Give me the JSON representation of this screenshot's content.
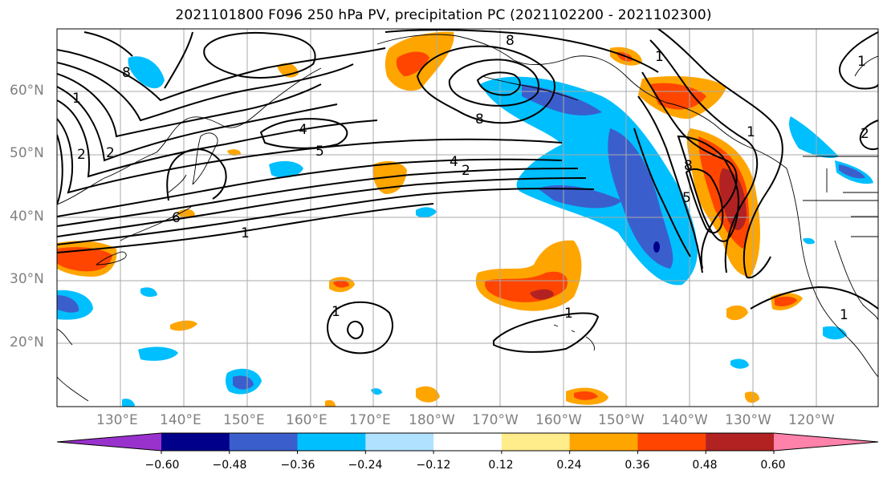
{
  "title": "2021101800 F096 250 hPa PV, precipitation PC (2021102200 - 2021102300)",
  "lat_labels": [
    "60°N",
    "50°N",
    "40°N",
    "30°N",
    "20°N"
  ],
  "lon_labels": [
    "130°E",
    "140°E",
    "150°E",
    "160°E",
    "170°E",
    "180°W",
    "170°W",
    "160°W",
    "150°W",
    "140°W",
    "130°W",
    "120°W"
  ],
  "contour_labels": [
    "8",
    "1",
    "8",
    "2",
    "5",
    "4",
    "2",
    "8",
    "5",
    "1",
    "1",
    "1",
    "8",
    "1",
    "2",
    "1",
    "6",
    "1",
    "1",
    "4",
    "2"
  ],
  "colorbar": {
    "colors": [
      "#9932cc",
      "#00008b",
      "#3a5fcd",
      "#00bfff",
      "#b0e2ff",
      "#ffffff",
      "#ffec8b",
      "#ffa500",
      "#ff4500",
      "#b22222",
      "#ff82ab"
    ],
    "tick_labels": [
      "−0.60",
      "−0.48",
      "−0.36",
      "−0.24",
      "−0.12",
      "0.12",
      "0.24",
      "0.36",
      "0.48",
      "0.60"
    ]
  }
}
